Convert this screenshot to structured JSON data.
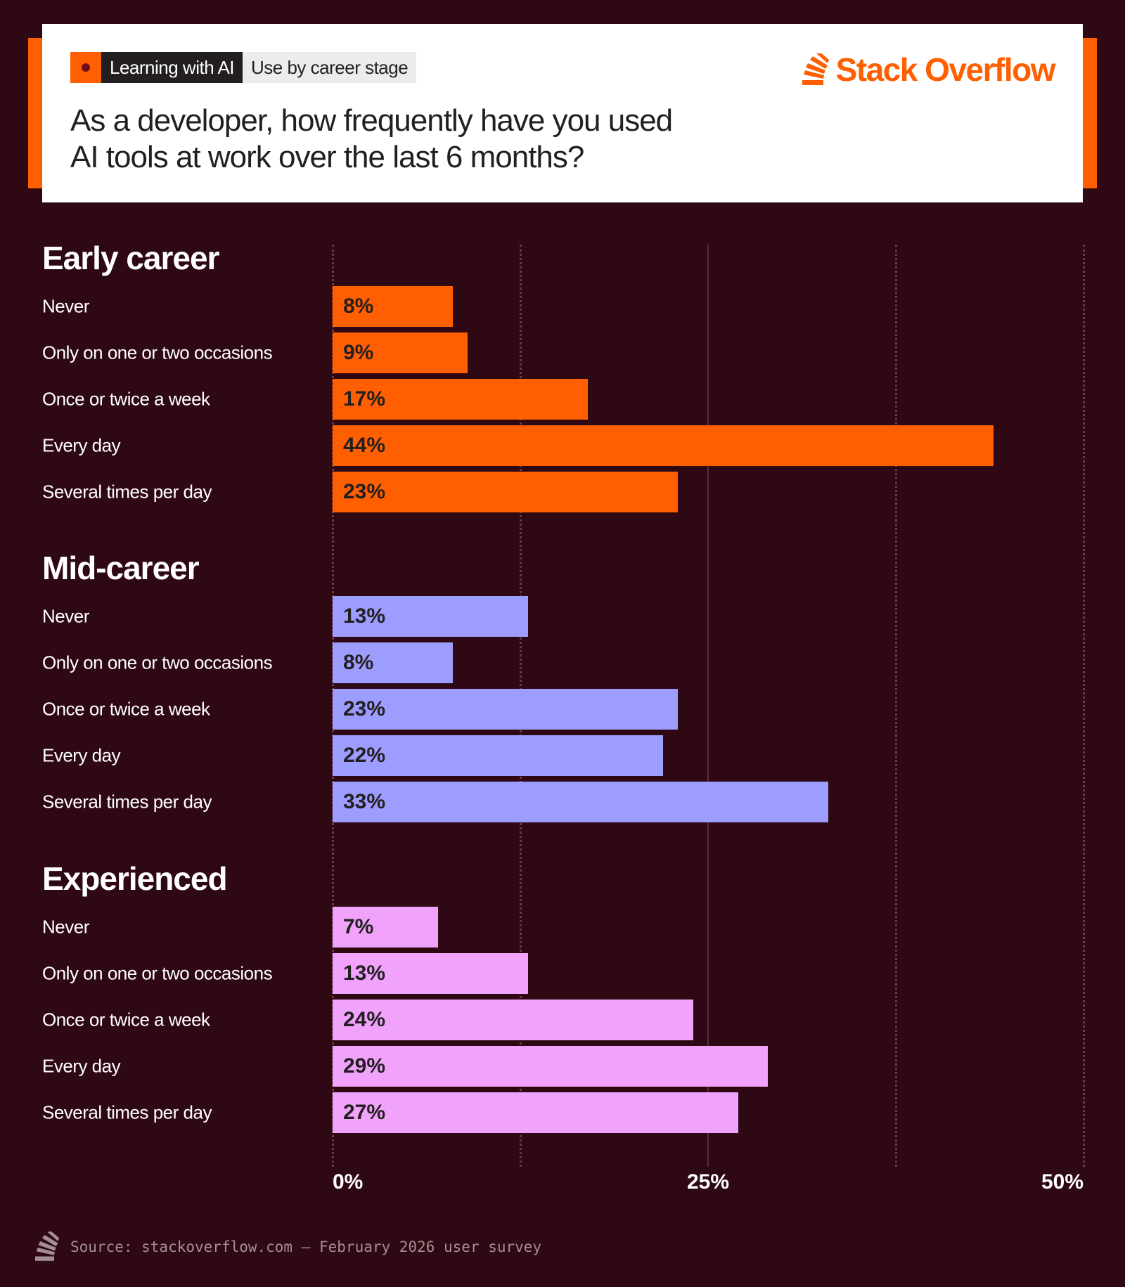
{
  "header": {
    "tag_category": "Learning with AI",
    "tag_topic": "Use by career stage",
    "title_line1": "As a developer, how frequently have you used",
    "title_line2": "AI tools at work over the last 6 months?",
    "logo_text": "Stack Overflow"
  },
  "footer": {
    "source": "Source: stackoverflow.com – February 2026 user survey"
  },
  "colors": {
    "background": "#2e0812",
    "accent": "#ff5f00",
    "early": "#ff5f00",
    "mid": "#9d9cff",
    "experienced": "#f1a2fb"
  },
  "chart_data": {
    "type": "bar",
    "orientation": "horizontal",
    "categories": [
      "Never",
      "Only on one or two occasions",
      "Once or twice a week",
      "Every day",
      "Several times per day"
    ],
    "series": [
      {
        "name": "Early career",
        "values": [
          8,
          9,
          17,
          44,
          23
        ],
        "labels": [
          "8%",
          "9%",
          "17%",
          "44%",
          "23%"
        ]
      },
      {
        "name": "Mid-career",
        "values": [
          13,
          8,
          23,
          22,
          33
        ],
        "labels": [
          "13%",
          "8%",
          "23%",
          "22%",
          "33%"
        ]
      },
      {
        "name": "Experienced",
        "values": [
          7,
          13,
          24,
          29,
          27
        ],
        "labels": [
          "7%",
          "13%",
          "24%",
          "29%",
          "27%"
        ]
      }
    ],
    "xlim": [
      0,
      50
    ],
    "x_ticks": [
      "0%",
      "25%",
      "50%"
    ],
    "unit": "%",
    "grid": true
  }
}
